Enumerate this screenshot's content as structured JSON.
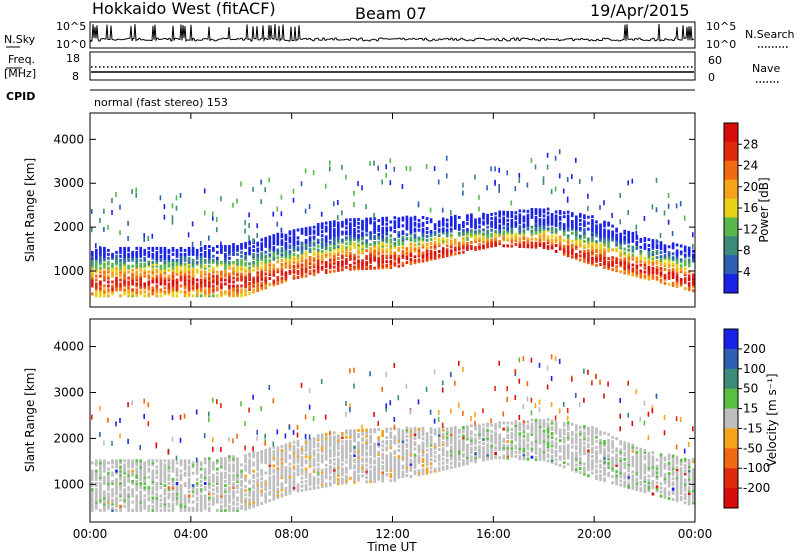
{
  "header": {
    "station": "Hokkaido West (fitACF)",
    "beam": "Beam 07",
    "date": "19/Apr/2015"
  },
  "noise_panel": {
    "left_label": "N.Sky",
    "right_label": "N.Search",
    "ticks": [
      "10^5",
      "10^0"
    ],
    "right_ticks": [
      "10^5",
      "10^0"
    ]
  },
  "freq_panel": {
    "left_label_line1": "Freq.",
    "left_label_line2": "[MHz]",
    "right_label": "Nave",
    "left_ticks": [
      "18",
      "8"
    ],
    "right_ticks": [
      "60",
      "0"
    ]
  },
  "cpid": {
    "label": "CPID",
    "mode": "normal (fast stereo) 153"
  },
  "x_axis": {
    "ticks": [
      "00:00",
      "04:00",
      "08:00",
      "12:00",
      "16:00",
      "20:00",
      "00:00"
    ],
    "label": "Time UT"
  },
  "colors": {
    "power_scale": [
      "#1a22e6",
      "#2f5fb2",
      "#3c8a7a",
      "#58b84e",
      "#e8d215",
      "#f5a31a",
      "#f06a12",
      "#e02a10",
      "#d90d0d"
    ],
    "velocity_scale": [
      "#1a22e6",
      "#2f5fb2",
      "#3c8a7a",
      "#58c040",
      "#bebebe",
      "#f5a31a",
      "#f06a12",
      "#e02a10",
      "#d90d0d"
    ]
  },
  "chart_data": [
    {
      "type": "heatmap",
      "panel": "power",
      "ylabel": "Slant Range [km]",
      "ylim": [
        180,
        4600
      ],
      "yticks": [
        1000,
        2000,
        3000,
        4000
      ],
      "xlim_hours": [
        0,
        24
      ],
      "colorbar": {
        "label": "Power [dB]",
        "ticks": [
          "4",
          "8",
          "12",
          "16",
          "20",
          "24",
          "28"
        ],
        "min": 0,
        "max": 32
      },
      "echo_band": {
        "time_hours": [
          0,
          4,
          6,
          8,
          10,
          12,
          14,
          16,
          18,
          20,
          22,
          24
        ],
        "lower_edge_km": [
          400,
          400,
          400,
          800,
          1000,
          1050,
          1300,
          1550,
          1500,
          1100,
          800,
          500
        ],
        "upper_edge_km": [
          1500,
          1500,
          1600,
          1900,
          2150,
          2200,
          2200,
          2300,
          2400,
          2200,
          1700,
          1500
        ],
        "peak_range_km": [
          700,
          700,
          700,
          950,
          1150,
          1200,
          1400,
          1550,
          1550,
          1250,
          1000,
          700
        ],
        "peak_power_db": [
          28,
          28,
          27,
          28,
          28,
          26,
          24,
          24,
          25,
          26,
          28,
          28
        ]
      }
    },
    {
      "type": "heatmap",
      "panel": "velocity",
      "ylabel": "Slant Range [km]",
      "ylim": [
        180,
        4600
      ],
      "yticks": [
        1000,
        2000,
        3000,
        4000
      ],
      "xlim_hours": [
        0,
        24
      ],
      "colorbar": {
        "label": "Velocity [m s⁻¹]",
        "ticks": [
          "200",
          "100",
          "50",
          "15",
          "-15",
          "-50",
          "-100",
          "-200"
        ],
        "min": -250,
        "max": 250
      },
      "echo_band": {
        "time_hours": [
          0,
          4,
          6,
          8,
          10,
          12,
          14,
          16,
          18,
          20,
          22,
          24
        ],
        "lower_edge_km": [
          400,
          400,
          400,
          800,
          1000,
          1050,
          1300,
          1550,
          1500,
          1100,
          800,
          500
        ],
        "upper_edge_km": [
          1500,
          1500,
          1600,
          1900,
          2150,
          2200,
          2200,
          2300,
          2400,
          2200,
          1700,
          1500
        ],
        "dominant_velocity": [
          0,
          0,
          0,
          -20,
          -40,
          -20,
          0,
          0,
          0,
          20,
          10,
          0
        ]
      }
    }
  ]
}
